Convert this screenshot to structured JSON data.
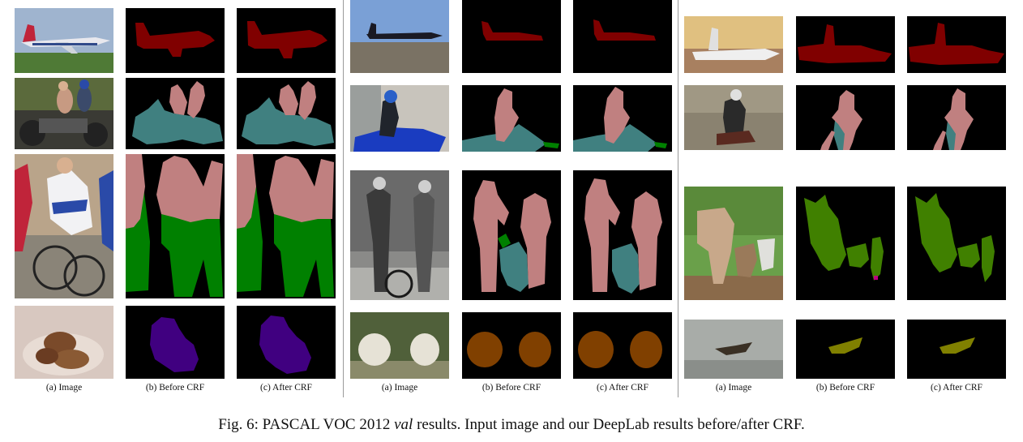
{
  "column_captions": {
    "image": "(a) Image",
    "before": "(b) Before CRF",
    "after": "(c) After CRF"
  },
  "caption": {
    "prefix": "Fig. 6: PASCAL VOC 2012 ",
    "italic": "val",
    "suffix": " results. Input image and our DeepLab results before/after CRF."
  },
  "class_colors": {
    "aeroplane": "#800000",
    "person": "#c08080",
    "motorbike": "#408080",
    "bicycle": "#008000",
    "dog": "#400080",
    "sheep": "#804000",
    "cow": "#408000",
    "bird": "#808000",
    "background": "#000000"
  }
}
